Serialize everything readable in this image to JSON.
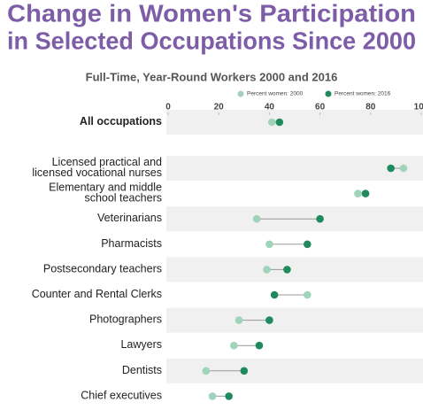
{
  "chart_data": {
    "type": "dumbbell",
    "title": "Change in Women's Participation\nin Selected Occupations Since 2000",
    "subtitle": "Full-Time, Year-Round Workers 2000 and 2016",
    "categories": [
      "All occupations",
      "Licensed practical and\nlicensed vocational nurses",
      "Elementary and middle\nschool teachers",
      "Veterinarians",
      "Pharmacists",
      "Postsecondary teachers",
      "Counter and Rental Clerks",
      "Photographers",
      "Lawyers",
      "Dentists",
      "Chief executives"
    ],
    "series": [
      {
        "name": "Percent women: 2000",
        "color": "#9fd4ba",
        "values": [
          41,
          93,
          75,
          35,
          40,
          39,
          55,
          28,
          26,
          15,
          17.5
        ]
      },
      {
        "name": "Percent women: 2016",
        "color": "#1f8a5e",
        "values": [
          44,
          88,
          78,
          60,
          55,
          47,
          42,
          40,
          36,
          30,
          24
        ]
      }
    ],
    "xlim": [
      0,
      100
    ],
    "xticks": [
      0,
      20,
      40,
      60,
      80,
      100
    ]
  }
}
